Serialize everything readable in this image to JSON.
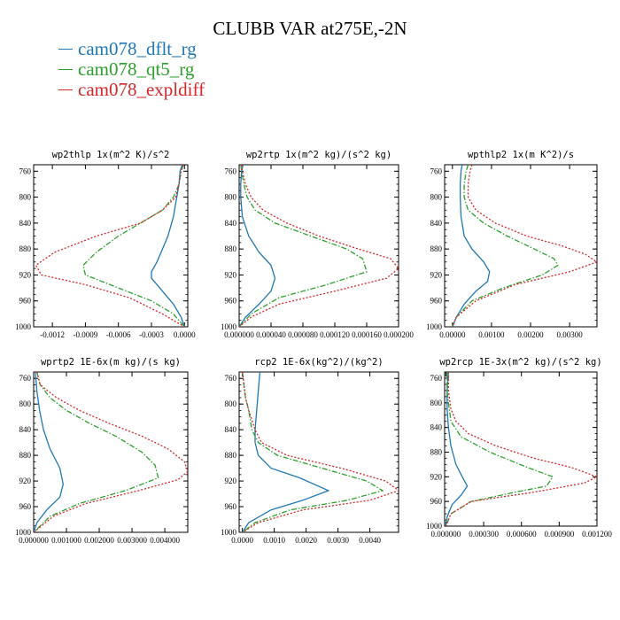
{
  "figure": {
    "title": "CLUBB VAR at275E,-2N",
    "legend": [
      {
        "label": "cam078_dflt_rg",
        "color": "#1f77b4",
        "dash": "solid"
      },
      {
        "label": "cam078_qt5_rg",
        "color": "#2ca02c",
        "dash": "dashdot"
      },
      {
        "label": "cam078_expldiff",
        "color": "#d62728",
        "dash": "dotted"
      }
    ]
  },
  "chart_data": [
    {
      "type": "line",
      "title": "wp2thlp  1x(m^2 K)/s^2",
      "xlabel": "",
      "ylabel": "",
      "xlim": [
        -0.00137,
        3e-05
      ],
      "ylim": [
        1000,
        750
      ],
      "xticks": [
        -0.0012,
        -0.0009,
        -0.0006,
        -0.0003,
        0.0
      ],
      "xtick_labels": [
        "-0.0012",
        "-0.0009",
        "-0.0006",
        "-0.0003",
        "0.0000"
      ],
      "yticks": [
        760,
        800,
        840,
        880,
        920,
        960,
        1000
      ],
      "ytick_labels": [
        "760",
        "800",
        "840",
        "880",
        "920",
        "960",
        "1000"
      ],
      "series": [
        {
          "name": "cam078_dflt_rg",
          "x": [
            -2e-05,
            -4e-05,
            -5e-05,
            -7e-05,
            -0.0001,
            -0.00015,
            -0.0002,
            -0.00025,
            -0.0003,
            -0.0003,
            -0.0002,
            -0.0001,
            -3e-05,
            0.0
          ],
          "y": [
            750,
            760,
            780,
            800,
            830,
            860,
            880,
            900,
            915,
            925,
            945,
            965,
            985,
            1000
          ]
        },
        {
          "name": "cam078_qt5_rg",
          "x": [
            -1e-05,
            -3e-05,
            -5e-05,
            -0.0001,
            -0.0002,
            -0.0004,
            -0.0006,
            -0.0008,
            -0.00092,
            -0.0009,
            -0.0006,
            -0.0003,
            -0.0001,
            0.0
          ],
          "y": [
            750,
            760,
            780,
            800,
            820,
            840,
            860,
            885,
            905,
            920,
            940,
            960,
            980,
            1000
          ]
        },
        {
          "name": "cam078_expldiff",
          "x": [
            -1e-05,
            -3e-05,
            -5e-05,
            -8e-05,
            -0.0002,
            -0.0004,
            -0.0008,
            -0.00118,
            -0.00135,
            -0.0013,
            -0.0009,
            -0.0005,
            -0.0002,
            0.0
          ],
          "y": [
            750,
            760,
            780,
            800,
            820,
            840,
            860,
            885,
            905,
            920,
            935,
            955,
            980,
            1000
          ]
        }
      ]
    },
    {
      "type": "line",
      "title": "wp2rtp  1x(m^2 kg)/(s^2 kg)",
      "xlabel": "",
      "ylabel": "",
      "xlim": [
        0.0,
        0.0002
      ],
      "ylim": [
        1000,
        750
      ],
      "xticks": [
        0.0,
        4e-05,
        8e-05,
        0.00012,
        0.00016,
        0.0002
      ],
      "xtick_labels": [
        "0.000000",
        "0.000040",
        "0.000080",
        "0.000120",
        "0.000160",
        "0.000200"
      ],
      "yticks": [
        760,
        800,
        840,
        880,
        920,
        960,
        1000
      ],
      "ytick_labels": [
        "760",
        "800",
        "840",
        "880",
        "920",
        "960",
        "1000"
      ],
      "series": [
        {
          "name": "cam078_dflt_rg",
          "x": [
            5e-06,
            3e-06,
            2e-06,
            2e-06,
            4e-06,
            1.2e-05,
            2.5e-05,
            4e-05,
            4.5e-05,
            4e-05,
            2.5e-05,
            8e-06,
            0.0
          ],
          "y": [
            750,
            760,
            780,
            800,
            830,
            860,
            885,
            905,
            925,
            945,
            965,
            985,
            1000
          ]
        },
        {
          "name": "cam078_qt5_rg",
          "x": [
            2e-06,
            3e-06,
            6e-06,
            1e-05,
            2e-05,
            4.5e-05,
            9e-05,
            0.000135,
            0.000155,
            0.00016,
            0.00011,
            5e-05,
            1.5e-05,
            0.0
          ],
          "y": [
            750,
            760,
            780,
            800,
            820,
            840,
            860,
            880,
            895,
            915,
            935,
            955,
            980,
            1000
          ]
        },
        {
          "name": "cam078_expldiff",
          "x": [
            3e-06,
            4e-06,
            8e-06,
            1.5e-05,
            3e-05,
            6e-05,
            0.0001,
            0.00015,
            0.00019,
            0.0002,
            0.000185,
            0.00012,
            5e-05,
            1.5e-05,
            0.0
          ],
          "y": [
            750,
            760,
            780,
            800,
            820,
            840,
            860,
            880,
            895,
            910,
            925,
            945,
            965,
            985,
            1000
          ]
        }
      ]
    },
    {
      "type": "line",
      "title": "wpthlp2  1x(m K^2)/s",
      "xlabel": "",
      "ylabel": "",
      "xlim": [
        -0.0002,
        0.0037
      ],
      "ylim": [
        1000,
        750
      ],
      "xticks": [
        0.0,
        0.001,
        0.002,
        0.003
      ],
      "xtick_labels": [
        "0.00000",
        "0.00100",
        "0.00200",
        "0.00300"
      ],
      "yticks": [
        760,
        800,
        840,
        880,
        920,
        960,
        1000
      ],
      "ytick_labels": [
        "760",
        "800",
        "840",
        "880",
        "920",
        "960",
        "1000"
      ],
      "series": [
        {
          "name": "cam078_dflt_rg",
          "x": [
            0.00025,
            0.00022,
            0.0002,
            0.0002,
            0.00022,
            0.0003,
            0.0005,
            0.0008,
            0.00095,
            0.0009,
            0.0006,
            0.0003,
            0.0001,
            0.0
          ],
          "y": [
            750,
            760,
            780,
            800,
            830,
            860,
            880,
            900,
            915,
            930,
            945,
            965,
            985,
            1000
          ]
        },
        {
          "name": "cam078_qt5_rg",
          "x": [
            0.0004,
            0.00035,
            0.0003,
            0.0003,
            0.0004,
            0.0008,
            0.0014,
            0.0021,
            0.0026,
            0.0027,
            0.0023,
            0.0013,
            0.0005,
            0.0001,
            0.0
          ],
          "y": [
            750,
            760,
            780,
            800,
            820,
            840,
            860,
            880,
            895,
            905,
            920,
            940,
            960,
            985,
            1000
          ]
        },
        {
          "name": "cam078_expldiff",
          "x": [
            0.0005,
            0.00045,
            0.0004,
            0.0004,
            0.0006,
            0.0011,
            0.0019,
            0.0028,
            0.0034,
            0.0037,
            0.003,
            0.0016,
            0.0006,
            0.0001,
            0.0
          ],
          "y": [
            750,
            760,
            780,
            800,
            820,
            840,
            860,
            875,
            888,
            900,
            915,
            935,
            960,
            985,
            1000
          ]
        }
      ]
    },
    {
      "type": "line",
      "title": "wprtp2  1E-6x(m kg)/(s kg)",
      "xlabel": "",
      "ylabel": "",
      "xlim": [
        0.0,
        0.0047
      ],
      "ylim": [
        1000,
        750
      ],
      "xticks": [
        0.0,
        0.001,
        0.002,
        0.003,
        0.004
      ],
      "xtick_labels": [
        "0.000000",
        "0.001000",
        "0.002000",
        "0.003000",
        "0.004000"
      ],
      "yticks": [
        760,
        800,
        840,
        880,
        920,
        960,
        1000
      ],
      "ytick_labels": [
        "760",
        "800",
        "840",
        "880",
        "920",
        "960",
        "1000"
      ],
      "series": [
        {
          "name": "cam078_dflt_rg",
          "x": [
            5e-05,
            0.0001,
            0.00018,
            0.0003,
            0.0005,
            0.0008,
            0.0009,
            0.0008,
            0.0004,
            0.0001,
            0.0
          ],
          "y": [
            750,
            780,
            810,
            840,
            870,
            900,
            925,
            945,
            965,
            985,
            1000
          ]
        },
        {
          "name": "cam078_qt5_rg",
          "x": [
            0.0001,
            0.0002,
            0.0005,
            0.001,
            0.0017,
            0.0025,
            0.0033,
            0.0037,
            0.0038,
            0.0028,
            0.0014,
            0.0005,
            0.0
          ],
          "y": [
            750,
            770,
            790,
            810,
            830,
            850,
            875,
            895,
            915,
            935,
            955,
            975,
            1000
          ]
        },
        {
          "name": "cam078_expldiff",
          "x": [
            0.0001,
            0.0002,
            0.0007,
            0.0014,
            0.0023,
            0.0033,
            0.0041,
            0.0046,
            0.0047,
            0.0044,
            0.0032,
            0.0016,
            0.0006,
            0.0
          ],
          "y": [
            750,
            770,
            790,
            810,
            830,
            850,
            870,
            890,
            905,
            918,
            935,
            955,
            975,
            1000
          ]
        }
      ]
    },
    {
      "type": "line",
      "title": "rcp2  1E-6x(kg^2)/(kg^2)",
      "xlabel": "",
      "ylabel": "",
      "xlim": [
        -0.0001,
        0.0049
      ],
      "ylim": [
        1000,
        750
      ],
      "xticks": [
        0.0,
        0.001,
        0.002,
        0.003,
        0.004
      ],
      "xtick_labels": [
        "0.0000",
        "0.0010",
        "0.0020",
        "0.0030",
        "0.0040"
      ],
      "yticks": [
        760,
        800,
        840,
        880,
        920,
        960,
        1000
      ],
      "ytick_labels": [
        "760",
        "800",
        "840",
        "880",
        "920",
        "960",
        "1000"
      ],
      "series": [
        {
          "name": "cam078_dflt_rg",
          "x": [
            0.00055,
            0.0005,
            0.00045,
            0.0004,
            0.0004,
            0.0005,
            0.0009,
            0.0018,
            0.0027,
            0.0019,
            0.0009,
            0.0002,
            0.0
          ],
          "y": [
            750,
            780,
            810,
            840,
            860,
            880,
            900,
            915,
            935,
            950,
            965,
            985,
            1000
          ]
        },
        {
          "name": "cam078_qt5_rg",
          "x": [
            0.0,
            5e-05,
            0.0001,
            0.0002,
            0.0003,
            0.0005,
            0.0011,
            0.0025,
            0.0039,
            0.0044,
            0.0033,
            0.0015,
            0.0004,
            0.0
          ],
          "y": [
            750,
            770,
            790,
            810,
            840,
            860,
            880,
            900,
            920,
            935,
            950,
            965,
            985,
            1000
          ]
        },
        {
          "name": "cam078_expldiff",
          "x": [
            0.0,
            5e-05,
            0.0001,
            0.0002,
            0.0004,
            0.0006,
            0.0014,
            0.0031,
            0.0045,
            0.0049,
            0.004,
            0.0019,
            0.0005,
            0.0
          ],
          "y": [
            750,
            770,
            790,
            810,
            840,
            860,
            880,
            900,
            920,
            935,
            950,
            965,
            985,
            1000
          ]
        }
      ]
    },
    {
      "type": "line",
      "title": "wp2rcp  1E-3x(m^2 kg)/(s^2 kg)",
      "xlabel": "",
      "ylabel": "",
      "xlim": [
        -1e-05,
        0.0012
      ],
      "ylim": [
        1000,
        750
      ],
      "xticks": [
        0.0,
        0.0003,
        0.0006,
        0.0009,
        0.0012
      ],
      "xtick_labels": [
        "0.000000",
        "0.000300",
        "0.000600",
        "0.000900",
        "0.001200"
      ],
      "yticks": [
        760,
        800,
        840,
        880,
        920,
        960,
        1000
      ],
      "ytick_labels": [
        "760",
        "800",
        "840",
        "880",
        "920",
        "960",
        "1000"
      ],
      "series": [
        {
          "name": "cam078_dflt_rg",
          "x": [
            2e-05,
            1e-05,
            1e-05,
            2e-05,
            4e-05,
            8e-05,
            0.00013,
            0.00017,
            0.00012,
            5e-05,
            1e-05,
            0.0
          ],
          "y": [
            750,
            780,
            810,
            840,
            870,
            900,
            920,
            935,
            950,
            965,
            985,
            1000
          ]
        },
        {
          "name": "cam078_qt5_rg",
          "x": [
            1e-05,
            1e-05,
            2e-05,
            4e-05,
            0.00012,
            0.00035,
            0.00065,
            0.00085,
            0.0008,
            0.00055,
            0.0002,
            4e-05,
            0.0
          ],
          "y": [
            750,
            780,
            800,
            830,
            855,
            880,
            905,
            920,
            935,
            945,
            960,
            980,
            1000
          ]
        },
        {
          "name": "cam078_expldiff",
          "x": [
            2e-05,
            2e-05,
            4e-05,
            8e-05,
            0.00018,
            0.0004,
            0.0007,
            0.001,
            0.0012,
            0.0011,
            0.0007,
            0.0002,
            4e-05,
            0.0
          ],
          "y": [
            750,
            780,
            810,
            830,
            850,
            870,
            890,
            905,
            920,
            930,
            945,
            960,
            980,
            1000
          ]
        }
      ]
    }
  ]
}
